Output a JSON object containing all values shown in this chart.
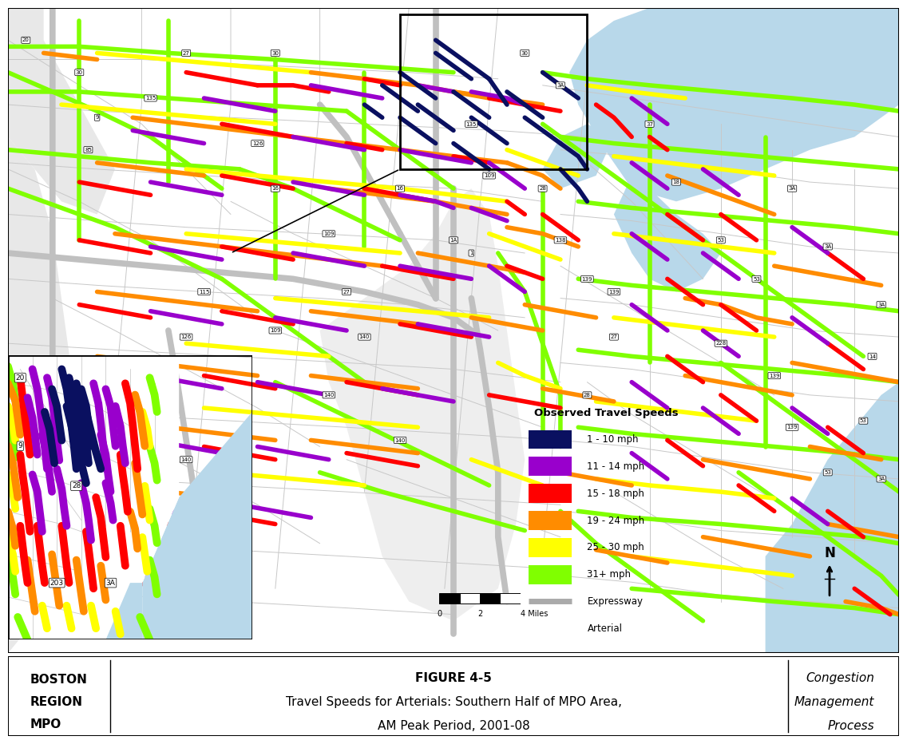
{
  "title_center": "FIGURE 4-5",
  "title_sub1": "Travel Speeds for Arterials: Southern Half of MPO Area,",
  "title_sub2": "AM Peak Period, 2001-08",
  "title_left1": "BOSTON",
  "title_left2": "REGION",
  "title_left3": "MPO",
  "title_right1": "Congestion",
  "title_right2": "Management",
  "title_right3": "Process",
  "legend_title": "Observed Travel Speeds",
  "legend_items": [
    {
      "label": "1 - 10 mph",
      "color": "#0a1060"
    },
    {
      "label": "11 - 14 mph",
      "color": "#9900cc"
    },
    {
      "label": "15 - 18 mph",
      "color": "#ff0000"
    },
    {
      "label": "19 - 24 mph",
      "color": "#ff8c00"
    },
    {
      "label": "25 - 30 mph",
      "color": "#ffff00"
    },
    {
      "label": "31+ mph",
      "color": "#80ff00"
    }
  ],
  "map_bg": "#ffffff",
  "map_land_light": "#e8e8e8",
  "map_water_color": "#b8d8ea",
  "expressway_color": "#c0c0c0",
  "road_gray": "#c8c8c8",
  "title_panel_bg": "#ffffff",
  "figure_bg": "#ffffff",
  "speed_colors": {
    "1-10": "#0a1060",
    "11-14": "#9900cc",
    "15-18": "#ff0000",
    "19-24": "#ff8c00",
    "25-30": "#ffff00",
    "31+": "#80ff00"
  }
}
